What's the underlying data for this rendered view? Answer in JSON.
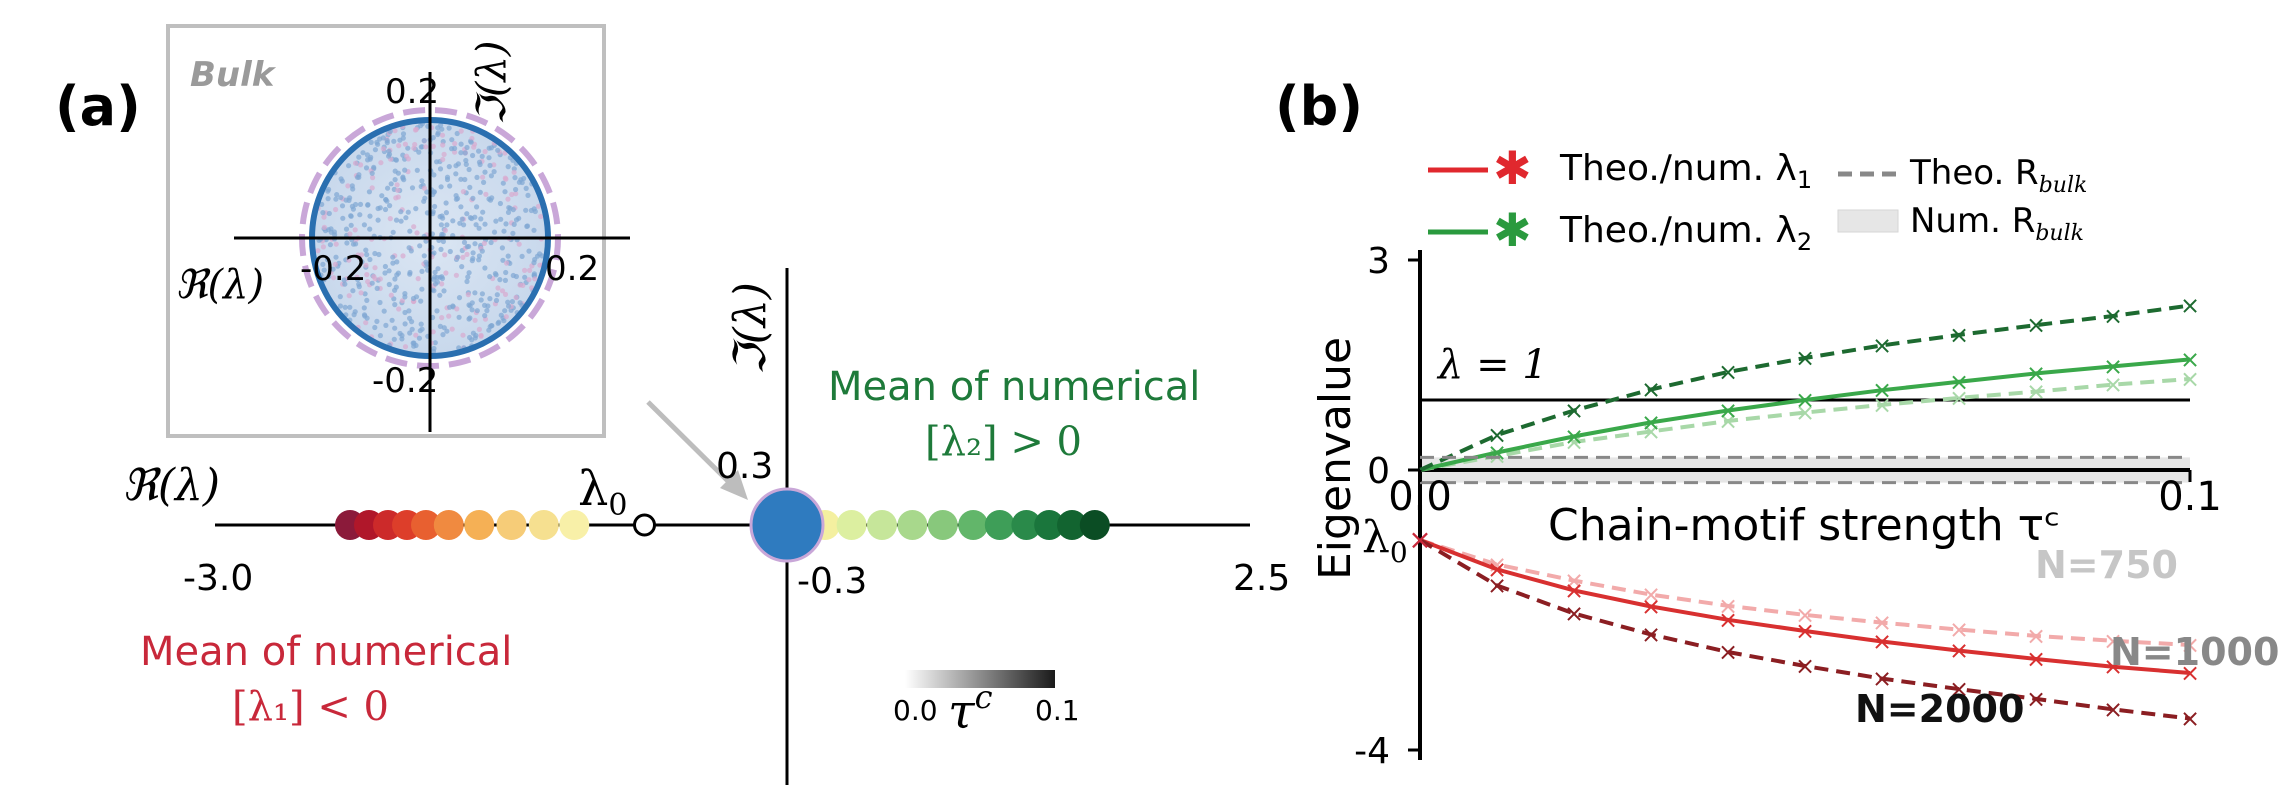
{
  "panel_a": {
    "label": "(a)",
    "inset": {
      "title": "Bulk",
      "x_axis_label": "ℜ(λ)",
      "y_axis_label": "ℑ(λ)",
      "tick_pos_x": "0.2",
      "tick_neg_x": "-0.2",
      "tick_pos_y": "0.2",
      "tick_neg_y": "-0.2"
    },
    "main": {
      "x_axis_label": "ℜ(λ)",
      "y_axis_label": "ℑ(λ)",
      "x_min_label": "-3.0",
      "x_max_label": "2.5",
      "y_pos_label": "0.3",
      "y_neg_label": "-0.3",
      "lambda0_label": "λ",
      "lambda0_sub": "0"
    },
    "annotation_green_line1": "Mean of numerical",
    "annotation_green_math": "[λ₂] > 0",
    "annotation_red_line1": "Mean of numerical",
    "annotation_red_math": "[λ₁] < 0",
    "colorbar": {
      "min_label": "0.0",
      "max_label": "0.1",
      "symbol": "τ",
      "superscript": "c",
      "start_color": "#ffffff",
      "end_color": "#1a1a1a"
    }
  },
  "panel_b": {
    "label": "(b)",
    "legend": [
      {
        "text": "Theo./num. λ",
        "sub": "1",
        "color": "#e0282e"
      },
      {
        "text": "Theo./num. λ",
        "sub": "2",
        "color": "#2a9a3e"
      },
      {
        "text": "Theo. R",
        "sub": "bulk",
        "color": "#888888"
      },
      {
        "text": "Num. R",
        "sub": "bulk",
        "color": "#e6e6e6"
      }
    ],
    "lambda_eq_label": "λ = 1",
    "lambda0_label": "λ",
    "lambda0_sub": "0",
    "n_labels": [
      "N=750",
      "N=1000",
      "N=2000"
    ]
  },
  "chart_data": [
    {
      "type": "scatter",
      "title": "",
      "xlabel": "ℜ(λ)",
      "ylabel": "ℑ(λ)",
      "xlim": [
        -3.0,
        2.5
      ],
      "ylim": [
        -0.3,
        0.3
      ],
      "lambda0": -0.75,
      "series": [
        {
          "name": "Mean of numerical [λ₁] < 0",
          "x": [
            -2.3,
            -2.2,
            -2.1,
            -2.0,
            -1.9,
            -1.78,
            -1.62,
            -1.45,
            -1.28,
            -1.12
          ],
          "y": [
            0,
            0,
            0,
            0,
            0,
            0,
            0,
            0,
            0,
            0
          ],
          "colors": [
            "#8b1a3a",
            "#b0172a",
            "#cc2a2a",
            "#dd3e2a",
            "#e86030",
            "#f08a40",
            "#f5b055",
            "#f6cc78",
            "#f6e090",
            "#f8f0a8"
          ]
        },
        {
          "name": "Mean of numerical [λ₂] > 0",
          "x": [
            0.2,
            0.34,
            0.5,
            0.66,
            0.82,
            0.98,
            1.12,
            1.26,
            1.38,
            1.5,
            1.62
          ],
          "y": [
            0,
            0,
            0,
            0,
            0,
            0,
            0,
            0,
            0,
            0,
            0
          ],
          "colors": [
            "#f4f0a0",
            "#dcefa0",
            "#c6e69a",
            "#a8d88c",
            "#88c87c",
            "#62b66a",
            "#3e9e58",
            "#2a8a4a",
            "#1a763c",
            "#126430",
            "#0b4d24"
          ]
        },
        {
          "name": "Bulk",
          "x": [
            0.0
          ],
          "y": [
            0.0
          ],
          "colors": [
            "#2f7bbf"
          ]
        }
      ],
      "inset": {
        "xlim": [
          -0.2,
          0.2
        ],
        "ylim": [
          -0.2,
          0.2
        ],
        "theoretical_radius": 0.2,
        "numerical_radius_dashed": 0.22
      }
    },
    {
      "type": "line",
      "title": "",
      "xlabel": "Chain-motif strength τᶜ",
      "ylabel": "Eigenvalue",
      "xlim": [
        0.0,
        0.1
      ],
      "ylim": [
        -4.5,
        3.6
      ],
      "x_ticks": [
        "0.0",
        "0.1"
      ],
      "y_ticks": [
        "3",
        "0",
        "-4"
      ],
      "hline_lambda_eq_1": 1,
      "x": [
        0.0,
        0.01,
        0.02,
        0.03,
        0.04,
        0.05,
        0.06,
        0.07,
        0.08,
        0.09,
        0.1
      ],
      "series": [
        {
          "name": "Theo./num. λ2 N=750",
          "color": "#a8d8a8",
          "dash": true,
          "values": [
            0.0,
            0.2,
            0.4,
            0.55,
            0.7,
            0.82,
            0.93,
            1.03,
            1.12,
            1.22,
            1.3
          ]
        },
        {
          "name": "Theo./num. λ2 N=1000",
          "color": "#3aa84a",
          "dash": false,
          "values": [
            0.0,
            0.25,
            0.48,
            0.68,
            0.85,
            1.0,
            1.14,
            1.26,
            1.38,
            1.48,
            1.58
          ]
        },
        {
          "name": "Theo./num. λ2 N=2000",
          "color": "#1d6a30",
          "dash": true,
          "values": [
            0.0,
            0.5,
            0.85,
            1.15,
            1.4,
            1.6,
            1.78,
            1.93,
            2.07,
            2.2,
            2.35
          ]
        },
        {
          "name": "Theo./num. λ1 N=750",
          "color": "#f2aaaa",
          "dash": true,
          "values": [
            -1.0,
            -1.35,
            -1.58,
            -1.78,
            -1.94,
            -2.07,
            -2.18,
            -2.28,
            -2.37,
            -2.44,
            -2.5
          ]
        },
        {
          "name": "Theo./num. λ1 N=1000",
          "color": "#d83030",
          "dash": false,
          "values": [
            -1.0,
            -1.42,
            -1.72,
            -1.95,
            -2.14,
            -2.3,
            -2.45,
            -2.58,
            -2.7,
            -2.81,
            -2.9
          ]
        },
        {
          "name": "Theo./num. λ1 N=2000",
          "color": "#8b1e22",
          "dash": true,
          "values": [
            -1.0,
            -1.65,
            -2.05,
            -2.35,
            -2.6,
            -2.8,
            -2.98,
            -3.13,
            -3.27,
            -3.42,
            -3.55
          ]
        },
        {
          "name": "Theo. R_bulk",
          "color": "#888888",
          "dash": true,
          "values": [
            0.18,
            0.18,
            0.18,
            0.18,
            0.18,
            0.18,
            0.18,
            0.18,
            0.18,
            0.18,
            0.18
          ]
        },
        {
          "name": "Theo. R_bulk lower",
          "color": "#888888",
          "dash": true,
          "values": [
            -0.18,
            -0.18,
            -0.18,
            -0.18,
            -0.18,
            -0.18,
            -0.18,
            -0.18,
            -0.18,
            -0.18,
            -0.18
          ]
        }
      ],
      "lambda0": -1.0
    }
  ]
}
